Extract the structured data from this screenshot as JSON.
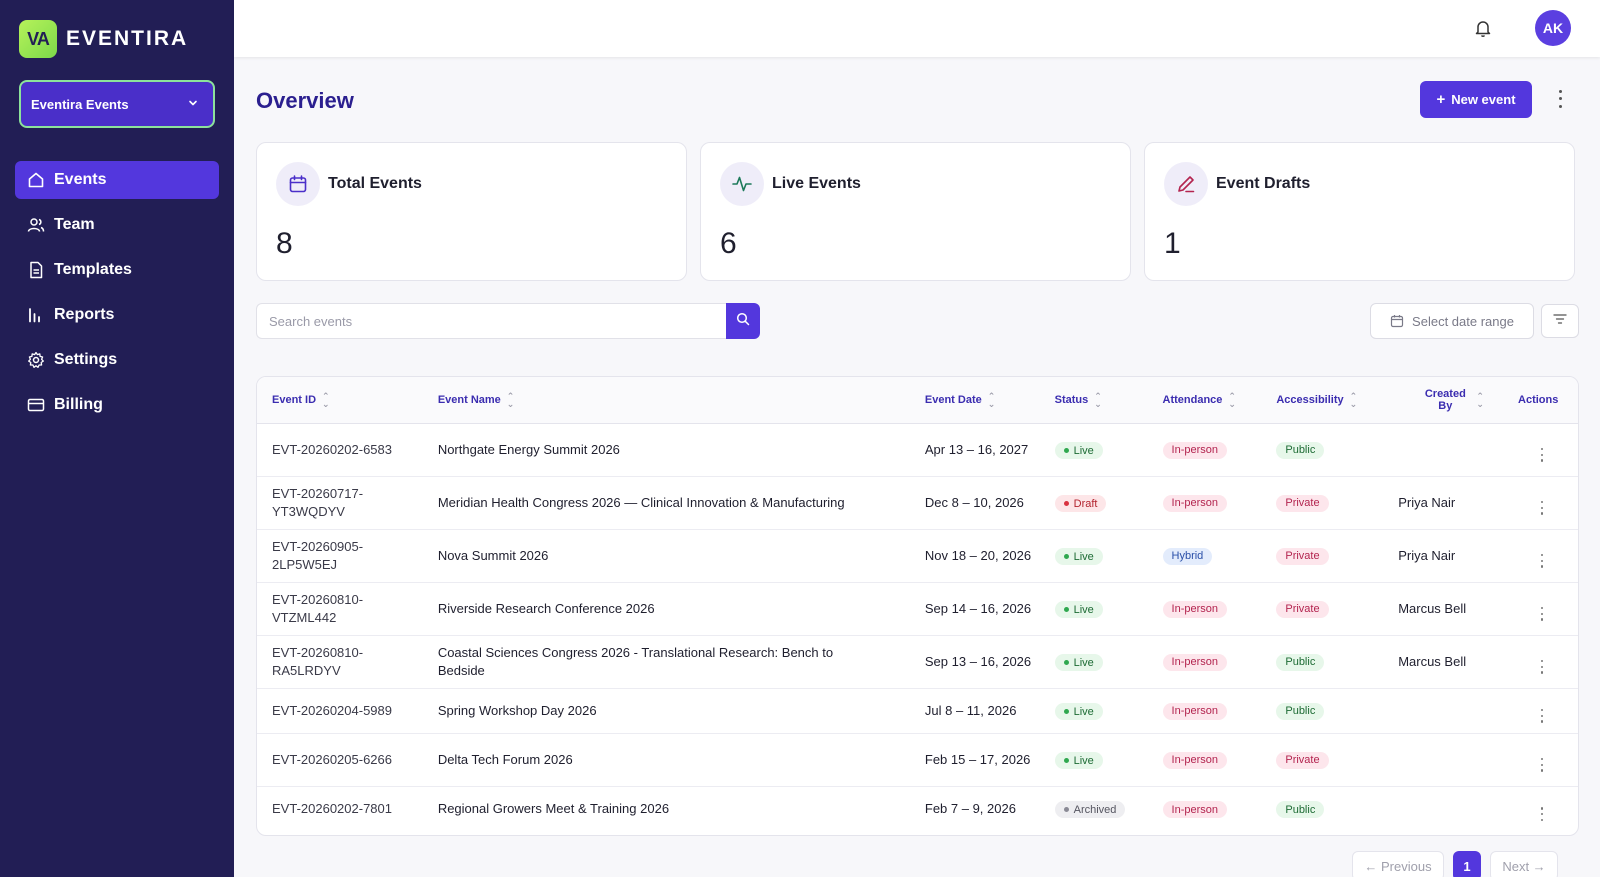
{
  "brand": {
    "logo_text": "VA",
    "name": "EVENTIRA"
  },
  "org_select": {
    "value": "Eventira Events"
  },
  "nav": {
    "items": [
      {
        "label": "Events",
        "icon": "home-icon",
        "active": true
      },
      {
        "label": "Team",
        "icon": "users-icon",
        "active": false
      },
      {
        "label": "Templates",
        "icon": "document-icon",
        "active": false
      },
      {
        "label": "Reports",
        "icon": "bar-chart-icon",
        "active": false
      },
      {
        "label": "Settings",
        "icon": "gear-icon",
        "active": false
      },
      {
        "label": "Billing",
        "icon": "credit-card-icon",
        "active": false
      }
    ]
  },
  "topbar": {
    "avatar_initials": "AK"
  },
  "page": {
    "title": "Overview",
    "new_event_label": "New event"
  },
  "stats": [
    {
      "label": "Total Events",
      "value": "8",
      "icon": "calendar-icon",
      "color": "#4a2fc9"
    },
    {
      "label": "Live Events",
      "value": "6",
      "icon": "activity-icon",
      "color": "#1d7a5a"
    },
    {
      "label": "Event Drafts",
      "value": "1",
      "icon": "pencil-icon",
      "color": "#b3244f"
    }
  ],
  "search": {
    "placeholder": "Search events"
  },
  "date_range": {
    "label": "Select date range"
  },
  "table": {
    "columns": [
      "Event ID",
      "Event Name",
      "Event Date",
      "Status",
      "Attendance",
      "Accessibility",
      "Created By",
      "Actions"
    ],
    "rows": [
      {
        "id": "EVT-20260202-6583",
        "name": "Northgate Energy Summit 2026",
        "date": "Apr 13 – 16, 2027",
        "status": "Live",
        "attendance": "In-person",
        "accessibility": "Public",
        "created_by": ""
      },
      {
        "id": "EVT-20260717-YT3WQDYV",
        "name": "Meridian Health Congress 2026 — Clinical Innovation & Manufacturing",
        "date": "Dec 8 – 10, 2026",
        "status": "Draft",
        "attendance": "In-person",
        "accessibility": "Private",
        "created_by": "Priya Nair"
      },
      {
        "id": "EVT-20260905-2LP5W5EJ",
        "name": "Nova Summit 2026",
        "date": "Nov 18 – 20, 2026",
        "status": "Live",
        "attendance": "Hybrid",
        "accessibility": "Private",
        "created_by": "Priya Nair"
      },
      {
        "id": "EVT-20260810-VTZML442",
        "name": "Riverside Research Conference 2026",
        "date": "Sep 14 – 16, 2026",
        "status": "Live",
        "attendance": "In-person",
        "accessibility": "Private",
        "created_by": "Marcus Bell"
      },
      {
        "id": "EVT-20260810-RA5LRDYV",
        "name": "Coastal Sciences Congress 2026 - Translational Research: Bench to Bedside",
        "date": "Sep 13 – 16, 2026",
        "status": "Live",
        "attendance": "In-person",
        "accessibility": "Public",
        "created_by": "Marcus Bell"
      },
      {
        "id": "EVT-20260204-5989",
        "name": "Spring Workshop Day 2026",
        "date": "Jul 8 – 11, 2026",
        "status": "Live",
        "attendance": "In-person",
        "accessibility": "Public",
        "created_by": ""
      },
      {
        "id": "EVT-20260205-6266",
        "name": "Delta Tech Forum 2026",
        "date": "Feb 15 – 17, 2026",
        "status": "Live",
        "attendance": "In-person",
        "accessibility": "Private",
        "created_by": ""
      },
      {
        "id": "EVT-20260202-7801",
        "name": "Regional Growers Meet & Training 2026",
        "date": "Feb 7 – 9, 2026",
        "status": "Archived",
        "attendance": "In-person",
        "accessibility": "Public",
        "created_by": ""
      }
    ]
  },
  "pagination": {
    "previous_label": "← Previous",
    "current_page": "1",
    "next_label": "Next →"
  }
}
